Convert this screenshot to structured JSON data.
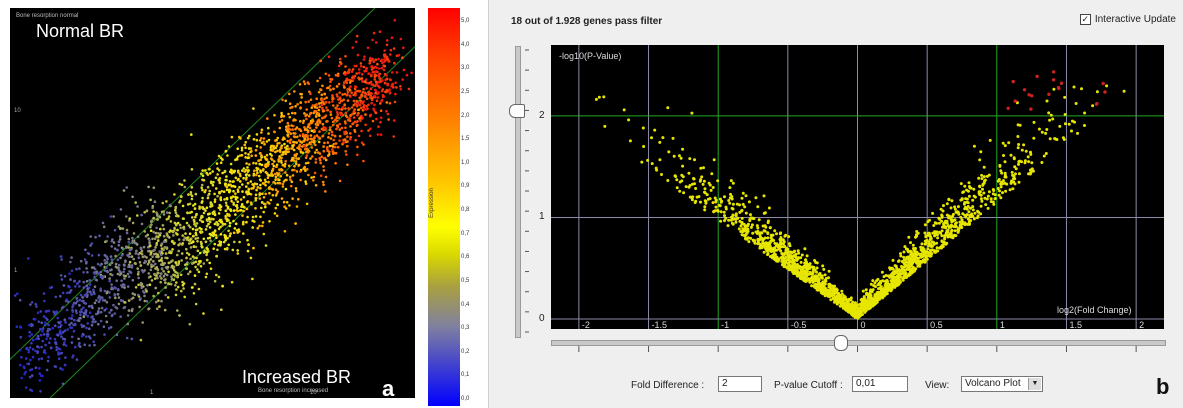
{
  "panel_a": {
    "header_small": "Bone resorption normal",
    "footer_small": "Bone resorption increased",
    "label_top": "Normal BR",
    "label_bottom": "Increased BR",
    "panel_letter": "a",
    "colorbar_title": "Expression",
    "colorbar_ticks": [
      "5,0",
      "4,0",
      "3,0",
      "2,5",
      "2,0",
      "1,5",
      "1,0",
      "0,9",
      "0,8",
      "0,7",
      "0,6",
      "0,5",
      "0,4",
      "0,3",
      "0,2",
      "0,1",
      "0,0"
    ]
  },
  "panel_b": {
    "filter_text": "18 out of 1.928 genes pass filter",
    "interactive_label": "Interactive Update",
    "interactive_checked": true,
    "panel_letter": "b",
    "controls": {
      "fold_label": "Fold Difference :",
      "fold_value": "2",
      "pvalue_label": "P-value Cutoff :",
      "pvalue_value": "0,01",
      "view_label": "View:",
      "view_value": "Volcano Plot"
    }
  },
  "chart_data": [
    {
      "type": "scatter",
      "title": "",
      "xlabel": "Bone resorption increased",
      "ylabel": "Bone resorption normal",
      "xscale": "log",
      "yscale": "log",
      "xlim": [
        0.2,
        20
      ],
      "ylim": [
        0.2,
        20
      ],
      "x_tick_labels": [
        "1",
        "10"
      ],
      "y_tick_labels": [
        "1",
        "10"
      ],
      "reference_lines": [
        "y = x (upper)",
        "y = x (lower)"
      ],
      "colormap": "expression",
      "grid": false
    },
    {
      "type": "scatter",
      "title": "Volcano Plot",
      "xlabel": "log2(Fold Change)",
      "ylabel": "-log10(P-Value)",
      "xlim": [
        -2.2,
        2.2
      ],
      "ylim": [
        0,
        2.6
      ],
      "x_ticks": [
        -2,
        -1.5,
        -1,
        -0.5,
        0,
        0.5,
        1,
        1.5,
        2
      ],
      "x_tick_labels": [
        "-2",
        "-1.5",
        "-1",
        "-0.5",
        "0",
        "0.5",
        "1",
        "1.5",
        "2"
      ],
      "y_ticks": [
        0,
        1,
        2
      ],
      "y_tick_labels": [
        "0",
        "1",
        "2"
      ],
      "grid": true,
      "thresholds": {
        "fold_change_log2": [
          -1,
          1
        ],
        "neg_log10_p": 2
      },
      "series": [
        {
          "name": "",
          "color": "#e6e600",
          "count": 1910
        },
        {
          "name": "",
          "color": "#cc2222",
          "count": 18
        }
      ]
    }
  ]
}
